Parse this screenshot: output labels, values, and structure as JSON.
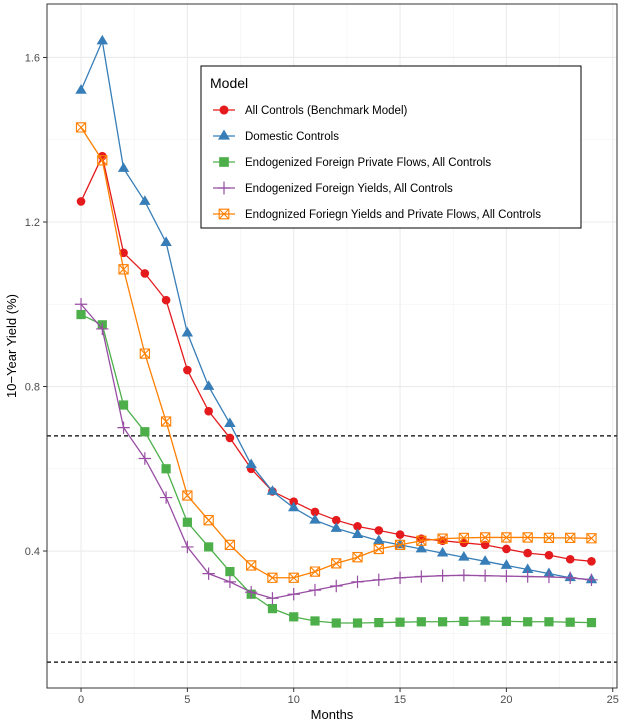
{
  "chart_data": {
    "type": "line",
    "xlabel": "Months",
    "ylabel": "10−Year Yield (%)",
    "xlim": [
      -1.6,
      25.2
    ],
    "ylim": [
      0.067,
      1.73
    ],
    "x_ticks": [
      0,
      5,
      10,
      15,
      20,
      25
    ],
    "y_ticks": [
      0.4,
      0.8,
      1.2,
      1.6
    ],
    "y_tick_labels": [
      "0.4",
      "0.8",
      "1.2",
      "1.6"
    ],
    "grid": true,
    "reference_lines": [
      0.68,
      0.13
    ],
    "legend": {
      "title": "Model",
      "placement": "top-right"
    },
    "x": [
      0,
      1,
      2,
      3,
      4,
      5,
      6,
      7,
      8,
      9,
      10,
      11,
      12,
      13,
      14,
      15,
      16,
      17,
      18,
      19,
      20,
      21,
      22,
      23,
      24
    ],
    "series": [
      {
        "name": "All Controls (Benchmark Model)",
        "color": "#E41A1C",
        "marker": "circle",
        "values": [
          1.25,
          1.36,
          1.125,
          1.075,
          1.01,
          0.84,
          0.74,
          0.675,
          0.6,
          0.545,
          0.52,
          0.495,
          0.475,
          0.46,
          0.45,
          0.44,
          0.43,
          0.425,
          0.42,
          0.415,
          0.405,
          0.395,
          0.39,
          0.38,
          0.375
        ]
      },
      {
        "name": "Domestic Controls",
        "color": "#377EB8",
        "marker": "triangle",
        "values": [
          1.52,
          1.64,
          1.33,
          1.25,
          1.15,
          0.93,
          0.8,
          0.71,
          0.61,
          0.545,
          0.505,
          0.475,
          0.455,
          0.44,
          0.425,
          0.415,
          0.405,
          0.395,
          0.385,
          0.375,
          0.365,
          0.355,
          0.345,
          0.335,
          0.33
        ]
      },
      {
        "name": "Endogenized Foreign Private Flows, All Controls",
        "color": "#4DAF4A",
        "marker": "square",
        "values": [
          0.975,
          0.95,
          0.755,
          0.69,
          0.6,
          0.47,
          0.41,
          0.35,
          0.295,
          0.26,
          0.24,
          0.23,
          0.225,
          0.225,
          0.226,
          0.227,
          0.228,
          0.228,
          0.229,
          0.23,
          0.229,
          0.228,
          0.228,
          0.227,
          0.226
        ]
      },
      {
        "name": "Endogenized Foreign Yields, All Controls",
        "color": "#984EA3",
        "marker": "plus",
        "values": [
          1.0,
          0.94,
          0.7,
          0.625,
          0.53,
          0.41,
          0.345,
          0.325,
          0.3,
          0.285,
          0.295,
          0.305,
          0.315,
          0.325,
          0.33,
          0.335,
          0.338,
          0.34,
          0.341,
          0.34,
          0.339,
          0.338,
          0.337,
          0.335,
          0.33
        ]
      },
      {
        "name": "Endognized Foriegn Yields and Private Flows, All Controls",
        "color": "#FF7F00",
        "marker": "boxx",
        "values": [
          1.43,
          1.35,
          1.085,
          0.88,
          0.715,
          0.535,
          0.475,
          0.415,
          0.365,
          0.335,
          0.335,
          0.35,
          0.37,
          0.385,
          0.405,
          0.415,
          0.425,
          0.43,
          0.432,
          0.433,
          0.433,
          0.433,
          0.432,
          0.432,
          0.431
        ]
      }
    ]
  }
}
